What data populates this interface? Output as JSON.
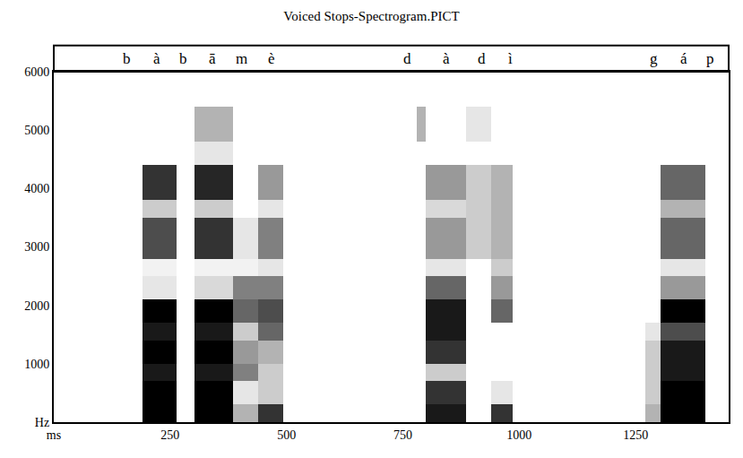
{
  "chart_data": {
    "type": "heatmap",
    "title": "Voiced Stops-Spectrogram.PICT",
    "color": "#000000",
    "grid": true,
    "tick_labels": true,
    "xlim": [
      0,
      1450
    ],
    "ylim": [
      0,
      6000
    ],
    "zlim": [
      0,
      1
    ],
    "xticks": [
      {
        "value": 0,
        "label": "ms"
      },
      250,
      500,
      750,
      1000,
      1250
    ],
    "yticks": [
      {
        "value": 0,
        "label": "Hz"
      },
      1000,
      2000,
      3000,
      4000,
      5000,
      6000
    ],
    "x": [
      0,
      190,
      263,
      303,
      386,
      439,
      492,
      780,
      800,
      886,
      939,
      986,
      1270,
      1303,
      1400,
      1450
    ],
    "y": [
      0,
      300,
      700,
      1000,
      1400,
      1700,
      2100,
      2500,
      2800,
      3500,
      3800,
      4400,
      4800,
      5400,
      6000
    ],
    "cells": [
      [
        0,
        1,
        0,
        1,
        0.3,
        0.8,
        0,
        0,
        0.9,
        0,
        0.8,
        0,
        0.3,
        1,
        0
      ],
      [
        0,
        1,
        0,
        1,
        0.1,
        0.2,
        0,
        0,
        0.8,
        0,
        0.1,
        0,
        0.2,
        1,
        0
      ],
      [
        0,
        0.9,
        0,
        0.9,
        0.5,
        0.2,
        0,
        0,
        0.2,
        0,
        0,
        0,
        0.2,
        0.9,
        0
      ],
      [
        0,
        1,
        0,
        1,
        0.4,
        0.3,
        0,
        0,
        0.8,
        0,
        0,
        0,
        0.2,
        0.9,
        0
      ],
      [
        0,
        0.9,
        0,
        0.9,
        0.2,
        0.6,
        0,
        0,
        0.9,
        0,
        0,
        0,
        0.1,
        0.7,
        0
      ],
      [
        0,
        1,
        0,
        1,
        0.6,
        0.7,
        0,
        0,
        0.9,
        0,
        0.6,
        0,
        0,
        1,
        0
      ],
      [
        0,
        0.1,
        0,
        0.15,
        0.5,
        0.5,
        0,
        0,
        0.6,
        0,
        0.4,
        0,
        0,
        0.4,
        0
      ],
      [
        0,
        0.05,
        0,
        0.05,
        0.05,
        0.1,
        0,
        0,
        0.1,
        0,
        0.2,
        0,
        0,
        0.1,
        0
      ],
      [
        0,
        0.7,
        0,
        0.8,
        0.1,
        0.5,
        0,
        0,
        0.4,
        0.2,
        0.3,
        0,
        0,
        0.6,
        0
      ],
      [
        0,
        0.2,
        0,
        0.2,
        0,
        0.1,
        0,
        0,
        0.15,
        0.2,
        0.3,
        0,
        0,
        0.3,
        0
      ],
      [
        0,
        0.8,
        0,
        0.85,
        0,
        0.4,
        0,
        0,
        0.4,
        0.2,
        0.3,
        0,
        0,
        0.6,
        0
      ],
      [
        0,
        0,
        0,
        0.1,
        0,
        0,
        0,
        0,
        0,
        0,
        0,
        0,
        0,
        0,
        0
      ],
      [
        0,
        0,
        0,
        0.3,
        0,
        0,
        0,
        0.3,
        0,
        0.1,
        0,
        0,
        0,
        0,
        0
      ],
      [
        0,
        0,
        0,
        0,
        0,
        0,
        0,
        0,
        0,
        0,
        0,
        0,
        0,
        0,
        0
      ]
    ],
    "annotations": [
      {
        "x": 156,
        "text": "b"
      },
      {
        "x": 222,
        "text": "à"
      },
      {
        "x": 278,
        "text": "b"
      },
      {
        "x": 340,
        "text": "ā"
      },
      {
        "x": 404,
        "text": "m"
      },
      {
        "x": 467,
        "text": "è"
      },
      {
        "x": 760,
        "text": "d"
      },
      {
        "x": 844,
        "text": "à"
      },
      {
        "x": 920,
        "text": "d"
      },
      {
        "x": 982,
        "text": "ì"
      },
      {
        "x": 1290,
        "text": "g"
      },
      {
        "x": 1354,
        "text": "á"
      },
      {
        "x": 1411,
        "text": "p"
      }
    ]
  }
}
